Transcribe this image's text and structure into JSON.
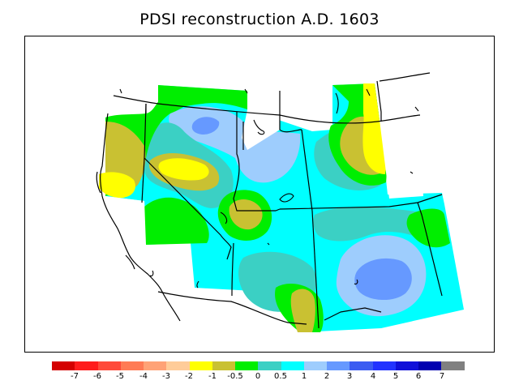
{
  "title": "PDSI reconstruction A.D. 1603",
  "legend": {
    "colors": [
      "#d40000",
      "#ff1c1c",
      "#ff4a3a",
      "#ff7b55",
      "#ffa276",
      "#ffcc99",
      "#ffff00",
      "#c9c132",
      "#00ee00",
      "#3bd0c4",
      "#00ffff",
      "#9ecdfd",
      "#6699ff",
      "#3b5cf2",
      "#2233ff",
      "#1010d9",
      "#0000b0",
      "#808080"
    ],
    "tick_labels": [
      "-7",
      "-6",
      "-5",
      "-4",
      "-3",
      "-2",
      "-1",
      "-0.5",
      "0",
      "0.5",
      "1",
      "2",
      "3",
      "4",
      "5",
      "6",
      "7"
    ]
  }
}
